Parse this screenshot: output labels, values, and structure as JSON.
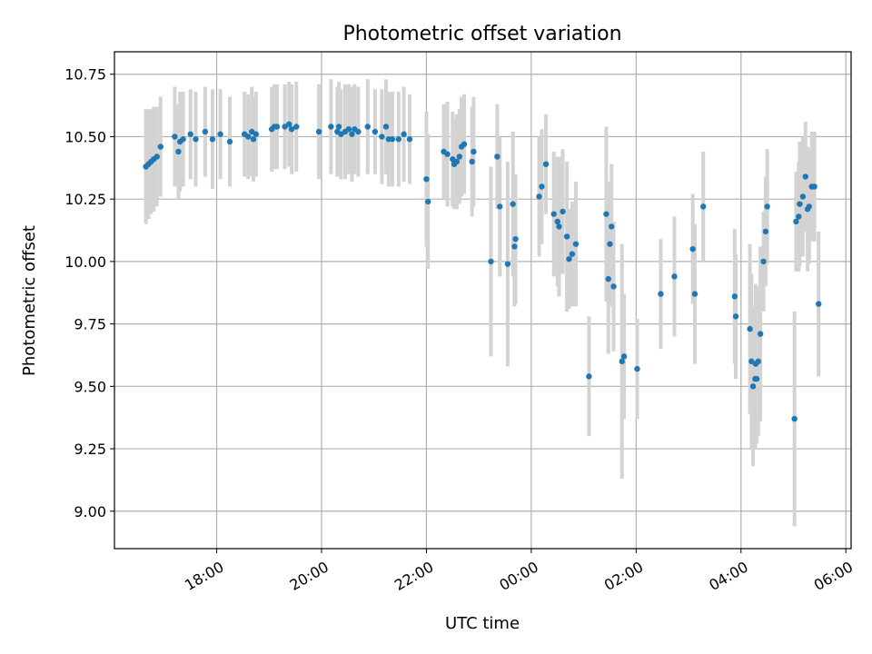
{
  "chart_data": {
    "type": "scatter",
    "title": "Photometric offset variation",
    "xlabel": "UTC time",
    "ylabel": "Photometric offset",
    "x_unit": "hours UTC (values >= 24 are after midnight of the next day)",
    "xlim": [
      16.05,
      30.1
    ],
    "ylim": [
      8.85,
      10.84
    ],
    "x_ticks": [
      {
        "value": 18,
        "label": "18:00"
      },
      {
        "value": 20,
        "label": "20:00"
      },
      {
        "value": 22,
        "label": "22:00"
      },
      {
        "value": 24,
        "label": "00:00"
      },
      {
        "value": 26,
        "label": "02:00"
      },
      {
        "value": 28,
        "label": "04:00"
      },
      {
        "value": 30,
        "label": "06:00"
      }
    ],
    "y_ticks": [
      {
        "value": 9.0,
        "label": "9.00"
      },
      {
        "value": 9.25,
        "label": "9.25"
      },
      {
        "value": 9.5,
        "label": "9.50"
      },
      {
        "value": 9.75,
        "label": "9.75"
      },
      {
        "value": 10.0,
        "label": "10.00"
      },
      {
        "value": 10.25,
        "label": "10.25"
      },
      {
        "value": 10.5,
        "label": "10.50"
      },
      {
        "value": 10.75,
        "label": "10.75"
      }
    ],
    "grid": true,
    "point_color": "#1f77b4",
    "errorbar_color": "#d3d3d3",
    "points": [
      {
        "x": 16.65,
        "y": 10.38,
        "err": 0.23
      },
      {
        "x": 16.7,
        "y": 10.39,
        "err": 0.22
      },
      {
        "x": 16.75,
        "y": 10.4,
        "err": 0.21
      },
      {
        "x": 16.8,
        "y": 10.41,
        "err": 0.21
      },
      {
        "x": 16.86,
        "y": 10.42,
        "err": 0.2
      },
      {
        "x": 16.93,
        "y": 10.46,
        "err": 0.2
      },
      {
        "x": 17.2,
        "y": 10.5,
        "err": 0.2
      },
      {
        "x": 17.27,
        "y": 10.44,
        "err": 0.19
      },
      {
        "x": 17.3,
        "y": 10.48,
        "err": 0.2
      },
      {
        "x": 17.36,
        "y": 10.49,
        "err": 0.19
      },
      {
        "x": 17.5,
        "y": 10.51,
        "err": 0.18
      },
      {
        "x": 17.6,
        "y": 10.49,
        "err": 0.19
      },
      {
        "x": 17.78,
        "y": 10.52,
        "err": 0.18
      },
      {
        "x": 17.92,
        "y": 10.49,
        "err": 0.2
      },
      {
        "x": 18.07,
        "y": 10.51,
        "err": 0.18
      },
      {
        "x": 18.25,
        "y": 10.48,
        "err": 0.18
      },
      {
        "x": 18.53,
        "y": 10.51,
        "err": 0.17
      },
      {
        "x": 18.6,
        "y": 10.5,
        "err": 0.17
      },
      {
        "x": 18.67,
        "y": 10.52,
        "err": 0.18
      },
      {
        "x": 18.7,
        "y": 10.49,
        "err": 0.17
      },
      {
        "x": 18.75,
        "y": 10.51,
        "err": 0.17
      },
      {
        "x": 19.05,
        "y": 10.53,
        "err": 0.17
      },
      {
        "x": 19.1,
        "y": 10.54,
        "err": 0.17
      },
      {
        "x": 19.15,
        "y": 10.54,
        "err": 0.17
      },
      {
        "x": 19.3,
        "y": 10.54,
        "err": 0.17
      },
      {
        "x": 19.38,
        "y": 10.55,
        "err": 0.17
      },
      {
        "x": 19.43,
        "y": 10.53,
        "err": 0.18
      },
      {
        "x": 19.52,
        "y": 10.54,
        "err": 0.18
      },
      {
        "x": 19.95,
        "y": 10.52,
        "err": 0.19
      },
      {
        "x": 20.18,
        "y": 10.54,
        "err": 0.19
      },
      {
        "x": 20.3,
        "y": 10.52,
        "err": 0.18
      },
      {
        "x": 20.33,
        "y": 10.54,
        "err": 0.18
      },
      {
        "x": 20.37,
        "y": 10.51,
        "err": 0.18
      },
      {
        "x": 20.45,
        "y": 10.52,
        "err": 0.19
      },
      {
        "x": 20.52,
        "y": 10.53,
        "err": 0.18
      },
      {
        "x": 20.58,
        "y": 10.51,
        "err": 0.19
      },
      {
        "x": 20.63,
        "y": 10.53,
        "err": 0.18
      },
      {
        "x": 20.7,
        "y": 10.52,
        "err": 0.18
      },
      {
        "x": 20.88,
        "y": 10.54,
        "err": 0.19
      },
      {
        "x": 21.02,
        "y": 10.52,
        "err": 0.17
      },
      {
        "x": 21.15,
        "y": 10.5,
        "err": 0.19
      },
      {
        "x": 21.23,
        "y": 10.54,
        "err": 0.19
      },
      {
        "x": 21.28,
        "y": 10.49,
        "err": 0.19
      },
      {
        "x": 21.35,
        "y": 10.49,
        "err": 0.19
      },
      {
        "x": 21.47,
        "y": 10.49,
        "err": 0.19
      },
      {
        "x": 21.57,
        "y": 10.51,
        "err": 0.19
      },
      {
        "x": 21.68,
        "y": 10.49,
        "err": 0.18
      },
      {
        "x": 22.0,
        "y": 10.33,
        "err": 0.27
      },
      {
        "x": 22.03,
        "y": 10.24,
        "err": 0.27
      },
      {
        "x": 22.33,
        "y": 10.44,
        "err": 0.19
      },
      {
        "x": 22.4,
        "y": 10.43,
        "err": 0.21
      },
      {
        "x": 22.5,
        "y": 10.41,
        "err": 0.19
      },
      {
        "x": 22.53,
        "y": 10.39,
        "err": 0.18
      },
      {
        "x": 22.58,
        "y": 10.4,
        "err": 0.19
      },
      {
        "x": 22.63,
        "y": 10.42,
        "err": 0.19
      },
      {
        "x": 22.67,
        "y": 10.46,
        "err": 0.2
      },
      {
        "x": 22.72,
        "y": 10.47,
        "err": 0.2
      },
      {
        "x": 22.87,
        "y": 10.4,
        "err": 0.22
      },
      {
        "x": 22.9,
        "y": 10.44,
        "err": 0.22
      },
      {
        "x": 23.23,
        "y": 10.0,
        "err": 0.38
      },
      {
        "x": 23.35,
        "y": 10.42,
        "err": 0.21
      },
      {
        "x": 23.4,
        "y": 10.22,
        "err": 0.28
      },
      {
        "x": 23.55,
        "y": 9.99,
        "err": 0.41
      },
      {
        "x": 23.65,
        "y": 10.23,
        "err": 0.29
      },
      {
        "x": 23.68,
        "y": 10.06,
        "err": 0.24
      },
      {
        "x": 23.7,
        "y": 10.09,
        "err": 0.26
      },
      {
        "x": 24.15,
        "y": 10.26,
        "err": 0.24
      },
      {
        "x": 24.2,
        "y": 10.3,
        "err": 0.23
      },
      {
        "x": 24.28,
        "y": 10.39,
        "err": 0.2
      },
      {
        "x": 24.43,
        "y": 10.19,
        "err": 0.25
      },
      {
        "x": 24.5,
        "y": 10.16,
        "err": 0.26
      },
      {
        "x": 24.53,
        "y": 10.14,
        "err": 0.28
      },
      {
        "x": 24.6,
        "y": 10.2,
        "err": 0.25
      },
      {
        "x": 24.68,
        "y": 10.1,
        "err": 0.3
      },
      {
        "x": 24.72,
        "y": 10.01,
        "err": 0.2
      },
      {
        "x": 24.78,
        "y": 10.03,
        "err": 0.21
      },
      {
        "x": 24.85,
        "y": 10.07,
        "err": 0.25
      },
      {
        "x": 25.1,
        "y": 9.54,
        "err": 0.24
      },
      {
        "x": 25.43,
        "y": 10.19,
        "err": 0.35
      },
      {
        "x": 25.47,
        "y": 9.93,
        "err": 0.3
      },
      {
        "x": 25.5,
        "y": 10.07,
        "err": 0.25
      },
      {
        "x": 25.53,
        "y": 10.14,
        "err": 0.25
      },
      {
        "x": 25.57,
        "y": 9.9,
        "err": 0.26
      },
      {
        "x": 25.73,
        "y": 9.6,
        "err": 0.47
      },
      {
        "x": 25.77,
        "y": 9.62,
        "err": 0.25
      },
      {
        "x": 26.02,
        "y": 9.57,
        "err": 0.2
      },
      {
        "x": 26.47,
        "y": 9.87,
        "err": 0.22
      },
      {
        "x": 26.73,
        "y": 9.94,
        "err": 0.24
      },
      {
        "x": 27.08,
        "y": 10.05,
        "err": 0.22
      },
      {
        "x": 27.12,
        "y": 9.87,
        "err": 0.28
      },
      {
        "x": 27.28,
        "y": 10.22,
        "err": 0.22
      },
      {
        "x": 27.88,
        "y": 9.86,
        "err": 0.27
      },
      {
        "x": 27.9,
        "y": 9.78,
        "err": 0.25
      },
      {
        "x": 28.17,
        "y": 9.73,
        "err": 0.34
      },
      {
        "x": 28.2,
        "y": 9.6,
        "err": 0.35
      },
      {
        "x": 28.23,
        "y": 9.5,
        "err": 0.32
      },
      {
        "x": 28.27,
        "y": 9.53,
        "err": 0.28
      },
      {
        "x": 28.28,
        "y": 9.59,
        "err": 0.32
      },
      {
        "x": 28.3,
        "y": 9.53,
        "err": 0.26
      },
      {
        "x": 28.33,
        "y": 9.6,
        "err": 0.3
      },
      {
        "x": 28.37,
        "y": 9.71,
        "err": 0.35
      },
      {
        "x": 28.43,
        "y": 10.0,
        "err": 0.2
      },
      {
        "x": 28.47,
        "y": 10.12,
        "err": 0.22
      },
      {
        "x": 28.5,
        "y": 10.22,
        "err": 0.23
      },
      {
        "x": 29.02,
        "y": 9.37,
        "err": 0.43
      },
      {
        "x": 29.05,
        "y": 10.16,
        "err": 0.2
      },
      {
        "x": 29.1,
        "y": 10.18,
        "err": 0.22
      },
      {
        "x": 29.12,
        "y": 10.23,
        "err": 0.25
      },
      {
        "x": 29.18,
        "y": 10.26,
        "err": 0.24
      },
      {
        "x": 29.23,
        "y": 10.34,
        "err": 0.22
      },
      {
        "x": 29.27,
        "y": 10.21,
        "err": 0.25
      },
      {
        "x": 29.3,
        "y": 10.22,
        "err": 0.23
      },
      {
        "x": 29.35,
        "y": 10.3,
        "err": 0.22
      },
      {
        "x": 29.4,
        "y": 10.3,
        "err": 0.22
      },
      {
        "x": 29.48,
        "y": 9.83,
        "err": 0.29
      }
    ]
  }
}
